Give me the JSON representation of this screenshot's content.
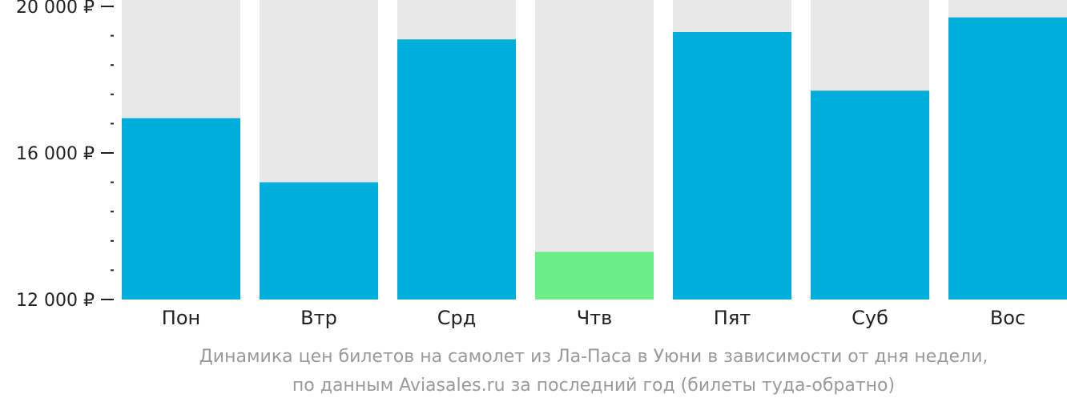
{
  "chart_data": {
    "type": "bar",
    "categories": [
      "Пон",
      "Втр",
      "Срд",
      "Чтв",
      "Пят",
      "Суб",
      "Вос"
    ],
    "values": [
      16950,
      15200,
      19100,
      13300,
      19300,
      17700,
      19700
    ],
    "highlight_index": 3,
    "ylim": [
      12000,
      20000
    ],
    "y_major_ticks": [
      12000,
      16000,
      20000
    ],
    "y_major_tick_labels": [
      "12 000 ₽",
      "16 000 ₽",
      "20 000 ₽"
    ],
    "y_minor_tick_step": 800,
    "colors": {
      "bar": "#00AEDB",
      "bar_highlight": "#6CEE87",
      "bar_background": "#E8E8E8"
    },
    "caption_lines": [
      "Динамика цен билетов на самолет из Ла-Паса в Уюни в зависимости от дня недели,",
      "по данным Aviasales.ru за последний год (билеты туда-обратно)"
    ]
  }
}
